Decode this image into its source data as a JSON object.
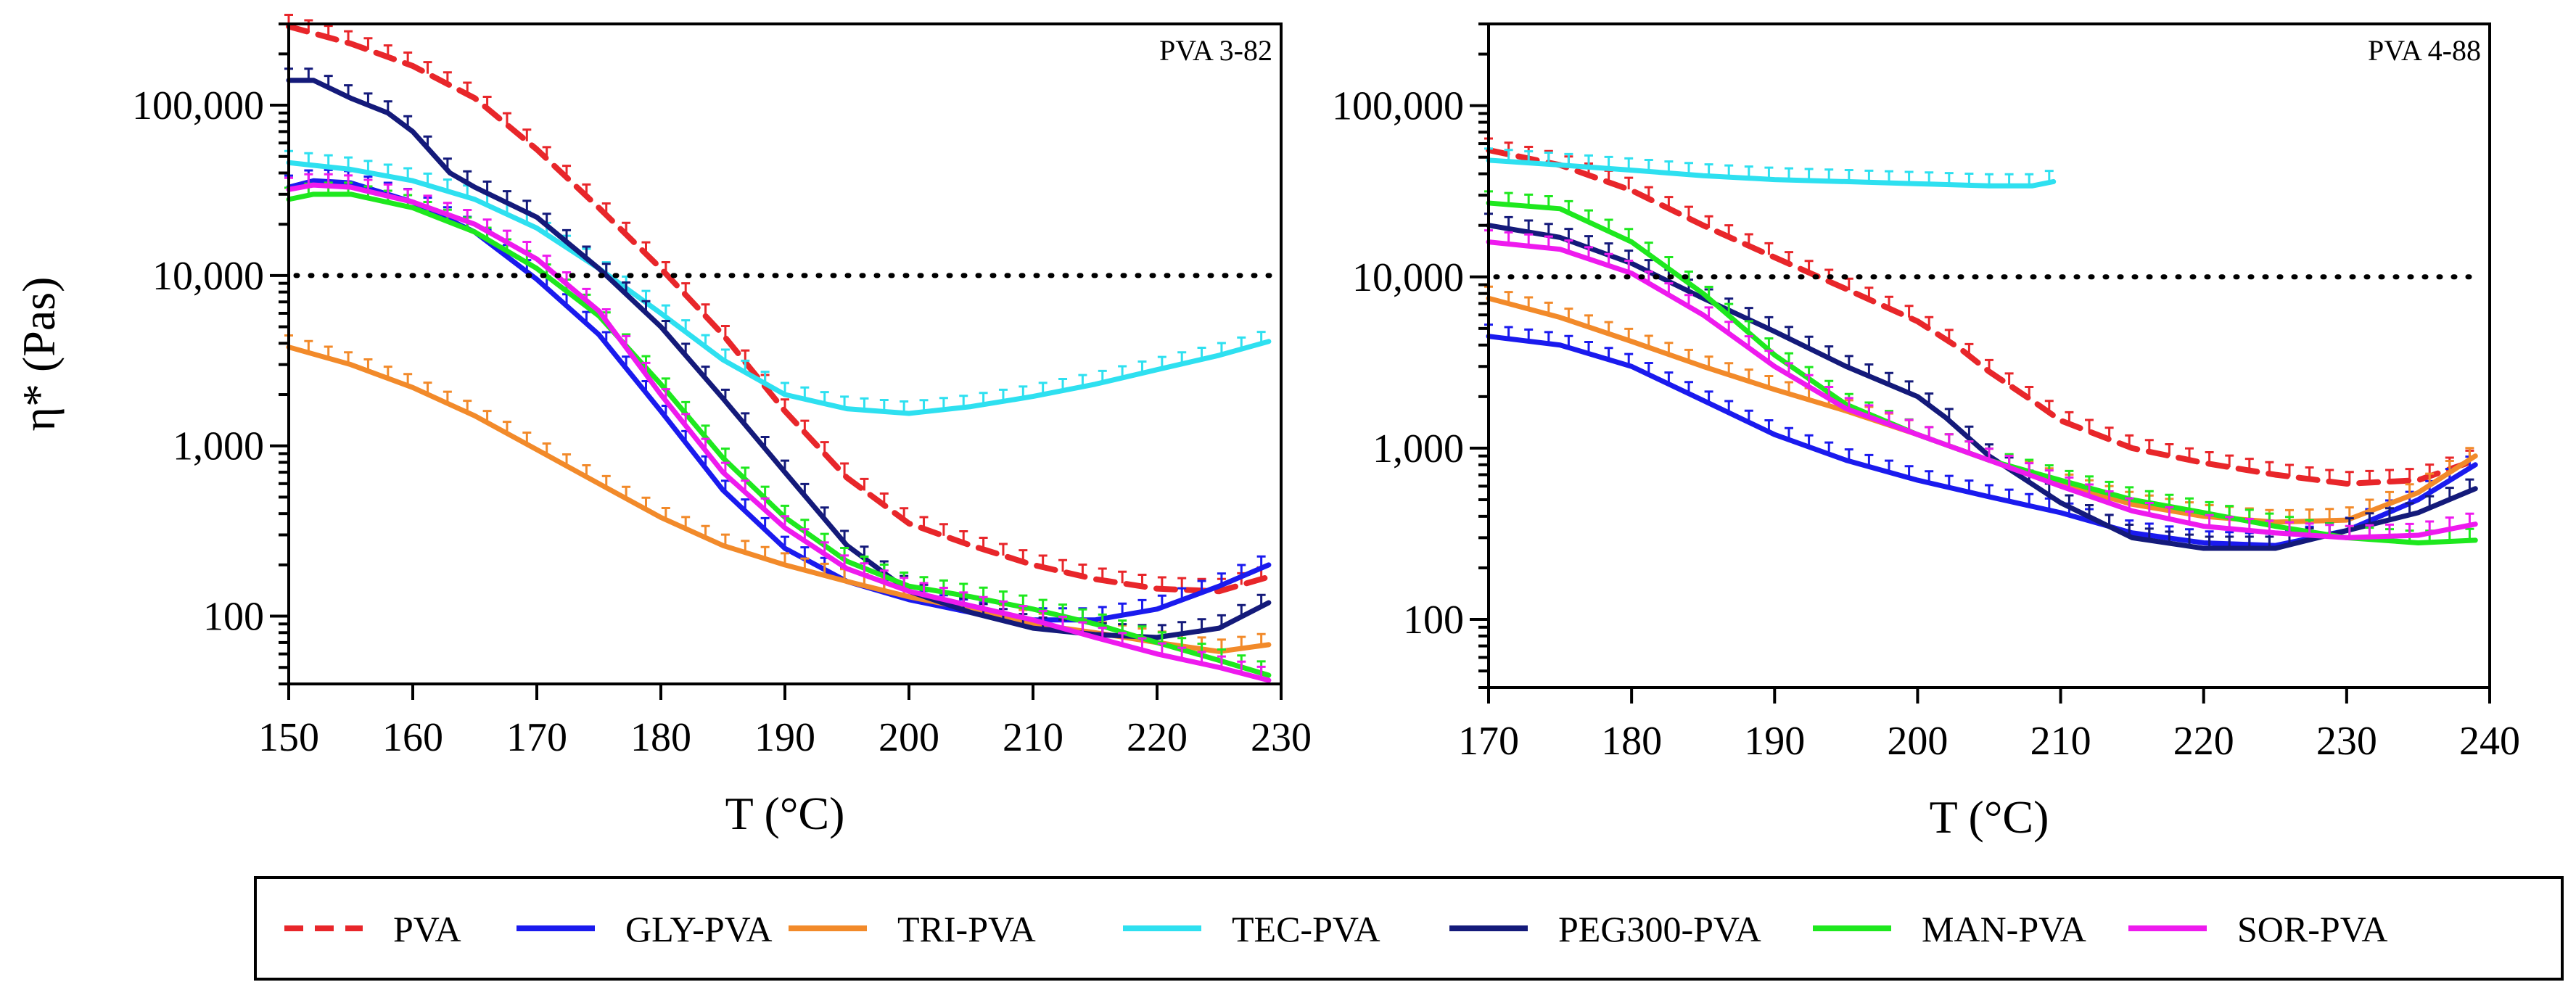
{
  "colors": {
    "PVA": "#e8262a",
    "GLY-PVA": "#1a1aee",
    "TRI-PVA": "#f28a2a",
    "TEC-PVA": "#2ee0f0",
    "PEG300-PVA": "#141a7a",
    "MAN-PVA": "#1ee81e",
    "SOR-PVA": "#ee1aee"
  },
  "legend": [
    {
      "name": "PVA",
      "style": "dashed"
    },
    {
      "name": "GLY-PVA",
      "style": "solid"
    },
    {
      "name": "TRI-PVA",
      "style": "solid"
    },
    {
      "name": "TEC-PVA",
      "style": "solid"
    },
    {
      "name": "PEG300-PVA",
      "style": "solid"
    },
    {
      "name": "MAN-PVA",
      "style": "solid"
    },
    {
      "name": "SOR-PVA",
      "style": "solid"
    }
  ],
  "chart_data": [
    {
      "type": "line",
      "panel_label": "PVA 3-82",
      "xlabel": "T (°C)",
      "ylabel": "η* (Pas)",
      "xscale": "linear",
      "yscale": "log",
      "xlim": [
        150,
        230
      ],
      "ylim": [
        40,
        300000
      ],
      "xticks": [
        150,
        160,
        170,
        180,
        190,
        200,
        210,
        220,
        230
      ],
      "xtick_labels": [
        "150",
        "160",
        "170",
        "180",
        "190",
        "200",
        "210",
        "220",
        "230"
      ],
      "yticks": [
        100,
        1000,
        10000,
        100000
      ],
      "ytick_labels": [
        "100",
        "1,000",
        "10,000",
        "100,000"
      ],
      "reference_line": {
        "y": 10000,
        "style": "dotted"
      },
      "series": [
        {
          "name": "PVA",
          "x": [
            150,
            155,
            160,
            165,
            170,
            175,
            180,
            185,
            190,
            195,
            200,
            205,
            210,
            215,
            220,
            225,
            229
          ],
          "y": [
            290000,
            230000,
            170000,
            110000,
            55000,
            25000,
            11000,
            4500,
            1600,
            650,
            350,
            260,
            200,
            165,
            145,
            140,
            170
          ]
        },
        {
          "name": "GLY-PVA",
          "x": [
            150,
            152,
            155,
            160,
            165,
            170,
            175,
            180,
            185,
            190,
            195,
            200,
            205,
            210,
            215,
            220,
            225,
            229
          ],
          "y": [
            33000,
            36000,
            35000,
            27000,
            18000,
            9500,
            4500,
            1600,
            550,
            250,
            160,
            125,
            105,
            95,
            95,
            110,
            150,
            200
          ]
        },
        {
          "name": "TRI-PVA",
          "x": [
            150,
            155,
            160,
            165,
            170,
            175,
            180,
            185,
            190,
            195,
            200,
            205,
            210,
            215,
            220,
            225,
            229
          ],
          "y": [
            3800,
            3000,
            2200,
            1500,
            950,
            600,
            380,
            260,
            200,
            160,
            130,
            110,
            90,
            80,
            70,
            62,
            68
          ]
        },
        {
          "name": "TEC-PVA",
          "x": [
            150,
            155,
            160,
            165,
            170,
            175,
            180,
            185,
            190,
            195,
            200,
            205,
            210,
            215,
            220,
            225,
            229
          ],
          "y": [
            46000,
            42000,
            36000,
            28000,
            19000,
            11000,
            6000,
            3200,
            2000,
            1650,
            1550,
            1700,
            1950,
            2300,
            2800,
            3400,
            4100
          ]
        },
        {
          "name": "PEG300-PVA",
          "x": [
            150,
            152,
            155,
            158,
            160,
            163,
            165,
            170,
            175,
            180,
            185,
            190,
            195,
            200,
            205,
            210,
            215,
            220,
            225,
            229
          ],
          "y": [
            140000,
            140000,
            110000,
            90000,
            70000,
            40000,
            33000,
            22000,
            11000,
            5000,
            1900,
            700,
            260,
            140,
            105,
            85,
            78,
            75,
            85,
            120
          ]
        },
        {
          "name": "MAN-PVA",
          "x": [
            150,
            152,
            155,
            160,
            165,
            170,
            175,
            180,
            185,
            190,
            195,
            200,
            205,
            210,
            215,
            220,
            225,
            229
          ],
          "y": [
            28000,
            30000,
            30000,
            25000,
            18000,
            11000,
            5800,
            2300,
            850,
            380,
            210,
            150,
            130,
            110,
            90,
            70,
            55,
            45
          ]
        },
        {
          "name": "SOR-PVA",
          "x": [
            150,
            152,
            155,
            160,
            165,
            170,
            175,
            180,
            185,
            190,
            195,
            200,
            205,
            210,
            215,
            220,
            225,
            229
          ],
          "y": [
            32000,
            34000,
            33000,
            27000,
            20000,
            12500,
            6200,
            2000,
            700,
            330,
            190,
            140,
            115,
            95,
            75,
            60,
            50,
            42
          ]
        }
      ]
    },
    {
      "type": "line",
      "panel_label": "PVA 4-88",
      "xlabel": "T (°C)",
      "ylabel": "",
      "xscale": "linear",
      "yscale": "log",
      "xlim": [
        170,
        240
      ],
      "ylim": [
        40,
        300000
      ],
      "xticks": [
        170,
        180,
        190,
        200,
        210,
        220,
        230,
        240
      ],
      "xtick_labels": [
        "170",
        "180",
        "190",
        "200",
        "210",
        "220",
        "230",
        "240"
      ],
      "yticks": [
        100,
        1000,
        10000,
        100000
      ],
      "ytick_labels": [
        "100",
        "1,000",
        "10,000",
        "100,000"
      ],
      "reference_line": {
        "y": 10000,
        "style": "dotted"
      },
      "series": [
        {
          "name": "PVA",
          "x": [
            170,
            175,
            180,
            185,
            190,
            195,
            200,
            203,
            205,
            208,
            210,
            215,
            220,
            225,
            230,
            235,
            239
          ],
          "y": [
            55000,
            45000,
            32000,
            20000,
            13000,
            8500,
            5500,
            3800,
            2800,
            1900,
            1450,
            1000,
            820,
            700,
            620,
            650,
            850
          ]
        },
        {
          "name": "GLY-PVA",
          "x": [
            170,
            175,
            180,
            185,
            190,
            195,
            200,
            205,
            210,
            215,
            220,
            225,
            230,
            235,
            239
          ],
          "y": [
            4500,
            4000,
            3000,
            1900,
            1200,
            850,
            650,
            520,
            420,
            320,
            280,
            270,
            330,
            500,
            800
          ]
        },
        {
          "name": "TRI-PVA",
          "x": [
            170,
            175,
            180,
            185,
            190,
            195,
            200,
            205,
            210,
            215,
            220,
            225,
            230,
            235,
            239
          ],
          "y": [
            7500,
            5800,
            4200,
            3000,
            2200,
            1650,
            1200,
            850,
            620,
            470,
            400,
            370,
            380,
            550,
            900
          ]
        },
        {
          "name": "TEC-PVA",
          "x": [
            170,
            175,
            180,
            185,
            190,
            195,
            200,
            205,
            208,
            209.5
          ],
          "y": [
            48000,
            45000,
            42000,
            39000,
            37000,
            36000,
            35000,
            34000,
            34000,
            36000
          ]
        },
        {
          "name": "PEG300-PVA",
          "x": [
            170,
            175,
            180,
            185,
            190,
            195,
            200,
            202,
            205,
            210,
            215,
            220,
            225,
            230,
            235,
            239
          ],
          "y": [
            20000,
            17000,
            12000,
            7500,
            4800,
            3000,
            2000,
            1500,
            900,
            480,
            300,
            260,
            260,
            330,
            420,
            580
          ]
        },
        {
          "name": "MAN-PVA",
          "x": [
            170,
            175,
            180,
            185,
            190,
            195,
            200,
            205,
            210,
            215,
            220,
            225,
            230,
            235,
            239
          ],
          "y": [
            27000,
            25000,
            16000,
            8000,
            3500,
            1800,
            1200,
            850,
            650,
            500,
            420,
            350,
            300,
            280,
            290
          ]
        },
        {
          "name": "SOR-PVA",
          "x": [
            170,
            175,
            180,
            185,
            190,
            195,
            200,
            205,
            210,
            215,
            220,
            225,
            230,
            235,
            239
          ],
          "y": [
            16000,
            14500,
            10500,
            6000,
            3000,
            1700,
            1200,
            850,
            600,
            430,
            350,
            320,
            300,
            310,
            360
          ]
        }
      ]
    }
  ]
}
